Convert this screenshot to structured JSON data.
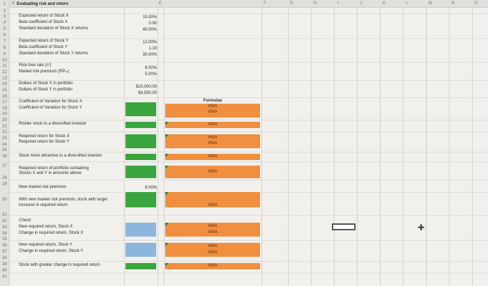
{
  "title": "Evaluating risk and return",
  "column_letters": [
    "A",
    "B",
    "C",
    "D",
    "E",
    "F",
    "G",
    "H",
    "I",
    "J",
    "K",
    "L",
    "M",
    "N",
    "O"
  ],
  "row_numbers": [
    "1",
    "2",
    "3",
    "4",
    "5",
    "6",
    "7",
    "8",
    "9",
    "10",
    "11",
    "12",
    "13",
    "14",
    "15",
    "16",
    "17",
    "18",
    "19",
    "20",
    "21",
    "22",
    "23",
    "24",
    "25",
    "26",
    "27",
    "28",
    "29",
    "30",
    "31",
    "32",
    "33",
    "34",
    "35",
    "36",
    "37",
    "38",
    "39",
    "40",
    "41"
  ],
  "rows": [
    {
      "label": "Expected return of Stock X",
      "value": "10.00%"
    },
    {
      "label": "Beta coefficient of Stock X",
      "value": "0.90"
    },
    {
      "label": "Standard deviation of Stock X returns",
      "value": "40.00%"
    },
    {
      "label": "Expected return of Stock Y",
      "value": "12.00%"
    },
    {
      "label": "Beta coefficient of Stock Y",
      "value": "1.10"
    },
    {
      "label": "Standard deviation of Stock Y returns",
      "value": "30.00%"
    },
    {
      "label": "Risk-free rate (rᵣᶠ)",
      "value": "6.00%"
    },
    {
      "label": "Market risk premium (RPₘ)",
      "value": "5.00%"
    },
    {
      "label": "Dollars of Stock X in portfolio",
      "value": "$10,000.00"
    },
    {
      "label": "Dollars of Stock Y in portfolio",
      "value": "$4,500.00"
    },
    {
      "label": "Coefficient of Variation for Stock X",
      "value": ""
    },
    {
      "label": "Coefficient of Variation for Stock Y",
      "value": ""
    },
    {
      "label": "Riskier stock to a diversified investor",
      "value": ""
    },
    {
      "label": "Required return for Stock X",
      "value": ""
    },
    {
      "label": "Required return for Stock Y",
      "value": ""
    },
    {
      "label": "Stock more attractive to a diversified investor",
      "value": ""
    },
    {
      "label": "Required return of portfolio containing",
      "value": ""
    },
    {
      "label": "Stocks X and Y in amounts above",
      "value": ""
    },
    {
      "label": "New market risk premium",
      "value": "6.00%"
    },
    {
      "label": "With new market risk premium, stock with larger",
      "value": ""
    },
    {
      "label": "increase in required return",
      "value": ""
    },
    {
      "label": "Check:",
      "value": ""
    },
    {
      "label": "New required return, Stock X",
      "value": ""
    },
    {
      "label": "Change in required return, Stock X",
      "value": ""
    },
    {
      "label": "New required return, Stock Y",
      "value": ""
    },
    {
      "label": "Change in required return, Stock Y",
      "value": ""
    },
    {
      "label": "Stock with greater change in required return",
      "value": ""
    }
  ],
  "formulas_header": "Formulas",
  "na_text": "#N/A",
  "colors": {
    "green": "#3aa53e",
    "blue": "#8cb6de",
    "orange": "#ef8f3f"
  }
}
